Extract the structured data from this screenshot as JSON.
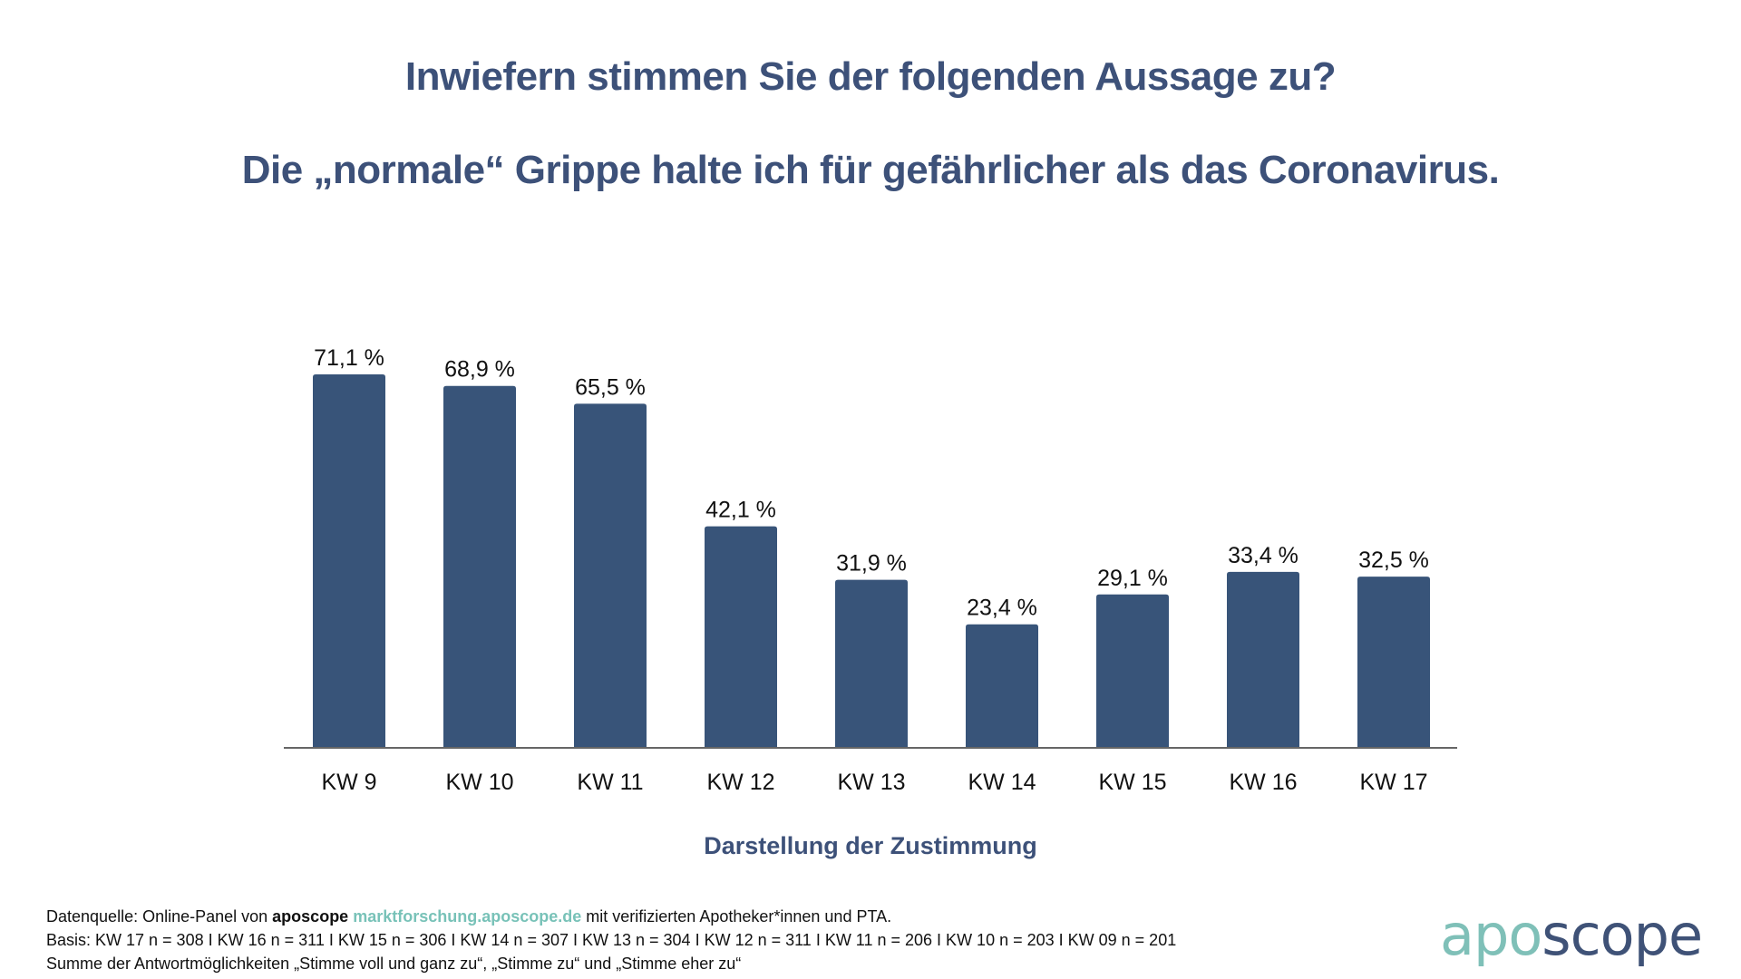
{
  "header": {
    "question": "Inwiefern stimmen Sie der folgenden Aussage zu?",
    "statement": "Die „normale“ Grippe halte ich für gefährlicher als das Coronavirus."
  },
  "colors": {
    "bar": "#385479",
    "title": "#3d5179",
    "axis": "#666666",
    "brand_teal": "#7fc0b8",
    "brand_blue": "#3f5277"
  },
  "chart_data": {
    "type": "bar",
    "title": "Inwiefern stimmen Sie der folgenden Aussage zu? Die „normale“ Grippe halte ich für gefährlicher als das Coronavirus.",
    "xlabel": "Darstellung der Zustimmung",
    "ylabel": "",
    "categories": [
      "KW 9",
      "KW 10",
      "KW 11",
      "KW 12",
      "KW 13",
      "KW 14",
      "KW 15",
      "KW 16",
      "KW 17"
    ],
    "values": [
      71.1,
      68.9,
      65.5,
      42.1,
      31.9,
      23.4,
      29.1,
      33.4,
      32.5
    ],
    "value_labels": [
      "71,1 %",
      "68,9 %",
      "65,5 %",
      "42,1 %",
      "31,9 %",
      "23,4 %",
      "29,1 %",
      "33,4 %",
      "32,5 %"
    ],
    "unit": "%",
    "ylim": [
      0,
      75
    ],
    "grid": false,
    "legend": "none"
  },
  "footer": {
    "source_prefix": "Datenquelle: Online-Panel von ",
    "source_brand": "aposcope",
    "source_link": "marktforschung.aposcope.de",
    "source_suffix": " mit verifizierten Apotheker*innen und PTA.",
    "basis": "Basis: KW 17 n = 308 I KW 16 n = 311 I KW 15 n = 306 I KW 14 n = 307 I KW 13 n = 304 I KW 12 n = 311 I KW 11 n = 206 I KW 10 n = 203 I KW 09 n = 201",
    "note": "Summe der Antwortmöglichkeiten „Stimme voll und ganz zu“, „Stimme zu“ und „Stimme eher zu“"
  },
  "logo": {
    "part1": "apo",
    "part2": "scope"
  }
}
